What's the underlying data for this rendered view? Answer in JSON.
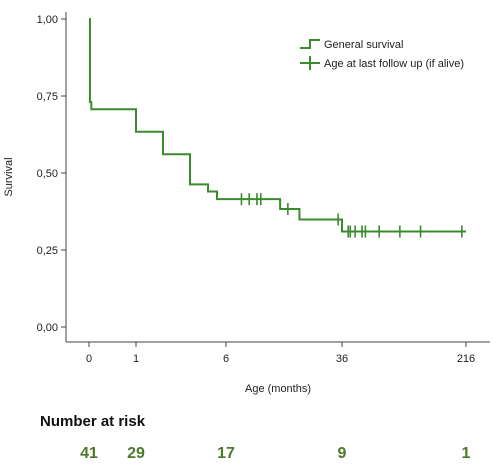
{
  "chart_data": {
    "type": "line",
    "ylabel": "Survival",
    "xlabel": "Age (months)",
    "x_ticks": [
      {
        "label": "0",
        "value": 0
      },
      {
        "label": "1",
        "value": 1
      },
      {
        "label": "6",
        "value": 6
      },
      {
        "label": "36",
        "value": 36
      },
      {
        "label": "216",
        "value": 216
      }
    ],
    "y_ticks": [
      "0,00",
      "0,25",
      "0,50",
      "0,75",
      "1,00"
    ],
    "ylim": [
      0,
      1
    ],
    "x_scale": "log-like",
    "series": [
      {
        "name": "General survival",
        "color": "#3a8a2e",
        "steps": [
          {
            "x": 0,
            "y": 1.0
          },
          {
            "x": 0.02,
            "y": 0.73
          },
          {
            "x": 0.05,
            "y": 0.707
          },
          {
            "x": 1,
            "y": 0.634
          },
          {
            "x": 2.5,
            "y": 0.561
          },
          {
            "x": 4,
            "y": 0.463
          },
          {
            "x": 5,
            "y": 0.44
          },
          {
            "x": 5.5,
            "y": 0.415
          },
          {
            "x": 20,
            "y": 0.383
          },
          {
            "x": 25,
            "y": 0.349
          },
          {
            "x": 36,
            "y": 0.31
          }
        ],
        "end_x": 216
      },
      {
        "name": "Age at last follow up (if alive)",
        "color": "#3a8a2e",
        "censor_points": [
          {
            "x": 10,
            "y": 0.415
          },
          {
            "x": 12,
            "y": 0.415
          },
          {
            "x": 14,
            "y": 0.415
          },
          {
            "x": 15,
            "y": 0.415
          },
          {
            "x": 22,
            "y": 0.383
          },
          {
            "x": 35,
            "y": 0.349
          },
          {
            "x": 45,
            "y": 0.31
          },
          {
            "x": 48,
            "y": 0.31
          },
          {
            "x": 55,
            "y": 0.31
          },
          {
            "x": 65,
            "y": 0.31
          },
          {
            "x": 70,
            "y": 0.31
          },
          {
            "x": 90,
            "y": 0.31
          },
          {
            "x": 120,
            "y": 0.31
          },
          {
            "x": 150,
            "y": 0.31
          },
          {
            "x": 210,
            "y": 0.31
          }
        ]
      }
    ],
    "legend": {
      "placement": "top-right"
    }
  },
  "risk_table": {
    "title": "Number at risk",
    "values": [
      {
        "x": 0,
        "count": "41"
      },
      {
        "x": 1,
        "count": "29"
      },
      {
        "x": 6,
        "count": "17"
      },
      {
        "x": 36,
        "count": "9"
      },
      {
        "x": 216,
        "count": "1"
      }
    ]
  }
}
